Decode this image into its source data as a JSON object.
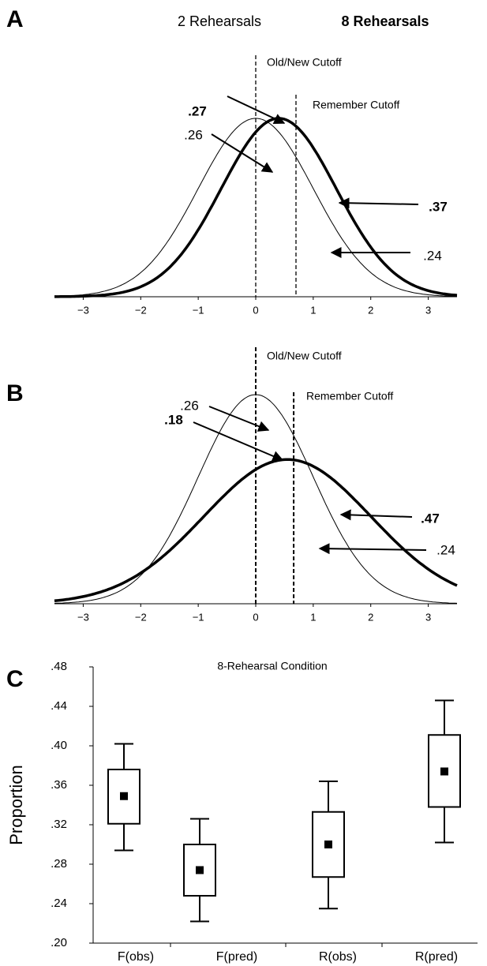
{
  "chart_data": [
    {
      "type": "normal-curves",
      "panel": "A",
      "series": [
        {
          "name": "2 Rehearsals",
          "mean": 0,
          "sd": 1,
          "color": "#000000",
          "bold": false
        },
        {
          "name": "8 Rehearsals",
          "mean": 0.4,
          "sd": 1,
          "color": "#000000",
          "bold": true
        }
      ],
      "cutoffs": [
        {
          "label": "Old/New Cutoff",
          "value": 0
        },
        {
          "label": "Remember Cutoff",
          "value": 0.7
        }
      ],
      "annotations": [
        {
          "text": ".27",
          "bold": true
        },
        {
          "text": ".26",
          "bold": false
        },
        {
          "text": ".37",
          "bold": true
        },
        {
          "text": ".24",
          "bold": false
        }
      ],
      "xlim": [
        -3.5,
        3.5
      ],
      "xticks": [
        {
          "value": -3,
          "label": "−3"
        },
        {
          "value": -2,
          "label": "−2"
        },
        {
          "value": -1,
          "label": "−1"
        },
        0,
        1,
        2,
        3
      ],
      "ylim": [
        0,
        0.42
      ]
    },
    {
      "type": "normal-curves",
      "panel": "B",
      "series": [
        {
          "mean": 0,
          "sd": 1,
          "color": "#000000",
          "bold": false
        },
        {
          "mean": 0.55,
          "sd": 1.45,
          "color": "#000000",
          "bold": true
        }
      ],
      "cutoffs": [
        {
          "label": "Old/New Cutoff",
          "value": 0
        },
        {
          "label": "Remember Cutoff",
          "value": 0.66
        }
      ],
      "annotations": [
        {
          "text": ".26",
          "bold": false
        },
        {
          "text": ".18",
          "bold": true
        },
        {
          "text": ".47",
          "bold": true
        },
        {
          "text": ".24",
          "bold": false
        }
      ],
      "xlim": [
        -3.5,
        3.5
      ],
      "xticks": [
        {
          "value": -3,
          "label": "−3"
        },
        {
          "value": -2,
          "label": "−2"
        },
        {
          "value": -1,
          "label": "−1"
        },
        0,
        1,
        2,
        3
      ],
      "ylim": [
        0,
        0.42
      ]
    },
    {
      "type": "box",
      "panel": "C",
      "title": "8-Rehearsal Condition",
      "y_label": "Proportion",
      "categories": [
        "F(obs)",
        "F(pred)",
        "R(obs)",
        "R(pred)"
      ],
      "boxes": [
        {
          "whislo": 0.294,
          "q1": 0.321,
          "mean": 0.349,
          "q3": 0.376,
          "whishi": 0.402
        },
        {
          "whislo": 0.222,
          "q1": 0.248,
          "mean": 0.274,
          "q3": 0.3,
          "whishi": 0.326
        },
        {
          "whislo": 0.235,
          "q1": 0.267,
          "mean": 0.3,
          "q3": 0.333,
          "whishi": 0.364
        },
        {
          "whislo": 0.302,
          "q1": 0.338,
          "mean": 0.374,
          "q3": 0.411,
          "whishi": 0.446
        }
      ],
      "ylim": [
        0.2,
        0.48
      ],
      "yticks": [
        {
          "value": 0.2,
          "label": ".20"
        },
        {
          "value": 0.24,
          "label": ".24"
        },
        {
          "value": 0.28,
          "label": ".28"
        },
        {
          "value": 0.32,
          "label": ".32"
        },
        {
          "value": 0.36,
          "label": ".36"
        },
        {
          "value": 0.4,
          "label": ".40"
        },
        {
          "value": 0.44,
          "label": ".44"
        },
        {
          "value": 0.48,
          "label": ".48"
        }
      ],
      "color": "#000000"
    }
  ]
}
